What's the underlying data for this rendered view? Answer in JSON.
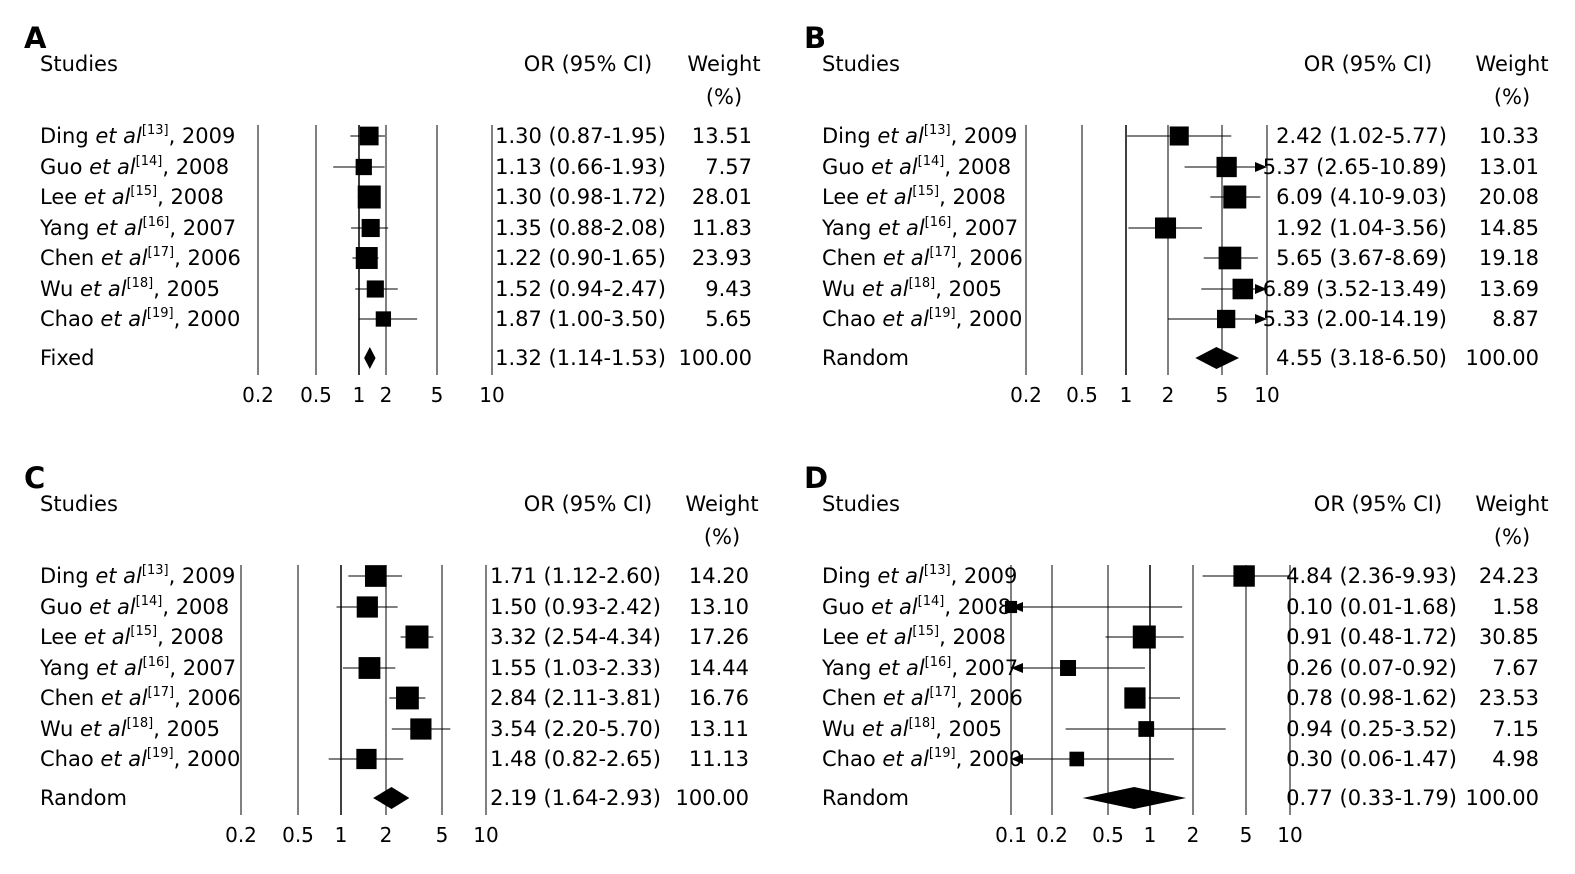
{
  "chart_data": [
    {
      "type": "forest",
      "panel": "A",
      "headers": {
        "studies": "Studies",
        "or": "OR (95% CI)",
        "weight": "Weight",
        "weight_unit": "(%)"
      },
      "scale": "log",
      "xlim": [
        0.2,
        10
      ],
      "ticks": [
        "0.2",
        "0.5",
        "1",
        "2",
        "5",
        "10"
      ],
      "studies": [
        {
          "author": "Ding",
          "ref": "[13]",
          "year": "2009",
          "or": 1.3,
          "lo": 0.87,
          "hi": 1.95,
          "or_text": "1.30 (0.87-1.95)",
          "weight": "13.51"
        },
        {
          "author": "Guo",
          "ref": "[14]",
          "year": "2008",
          "or": 1.13,
          "lo": 0.66,
          "hi": 1.93,
          "or_text": "1.13 (0.66-1.93)",
          "weight": "7.57"
        },
        {
          "author": "Lee",
          "ref": "[15]",
          "year": "2008",
          "or": 1.3,
          "lo": 0.98,
          "hi": 1.72,
          "or_text": "1.30 (0.98-1.72)",
          "weight": "28.01"
        },
        {
          "author": "Yang",
          "ref": "[16]",
          "year": "2007",
          "or": 1.35,
          "lo": 0.88,
          "hi": 2.08,
          "or_text": "1.35 (0.88-2.08)",
          "weight": "11.83"
        },
        {
          "author": "Chen",
          "ref": "[17]",
          "year": "2006",
          "or": 1.22,
          "lo": 0.9,
          "hi": 1.65,
          "or_text": "1.22 (0.90-1.65)",
          "weight": "23.93"
        },
        {
          "author": "Wu",
          "ref": "[18]",
          "year": "2005",
          "or": 1.52,
          "lo": 0.94,
          "hi": 2.47,
          "or_text": "1.52 (0.94-2.47)",
          "weight": "9.43"
        },
        {
          "author": "Chao",
          "ref": "[19]",
          "year": "2000",
          "or": 1.87,
          "lo": 1.0,
          "hi": 3.5,
          "or_text": "1.87 (1.00-3.50)",
          "weight": "5.65"
        }
      ],
      "pooled": {
        "label": "Fixed",
        "or": 1.32,
        "lo": 1.14,
        "hi": 1.53,
        "or_text": "1.32 (1.14-1.53)",
        "weight": "100.00"
      }
    },
    {
      "type": "forest",
      "panel": "B",
      "headers": {
        "studies": "Studies",
        "or": "OR (95% CI)",
        "weight": "Weight",
        "weight_unit": "(%)"
      },
      "scale": "log",
      "xlim": [
        0.2,
        10
      ],
      "ticks": [
        "0.2",
        "0.5",
        "1",
        "2",
        "5",
        "10"
      ],
      "studies": [
        {
          "author": "Ding",
          "ref": "[13]",
          "year": "2009",
          "or": 2.42,
          "lo": 1.02,
          "hi": 5.77,
          "or_text": "2.42 (1.02-5.77)",
          "weight": "10.33"
        },
        {
          "author": "Guo",
          "ref": "[14]",
          "year": "2008",
          "or": 5.37,
          "lo": 2.65,
          "hi": 10.89,
          "or_text": "5.37 (2.65-10.89)",
          "weight": "13.01"
        },
        {
          "author": "Lee",
          "ref": "[15]",
          "year": "2008",
          "or": 6.09,
          "lo": 4.1,
          "hi": 9.03,
          "or_text": "6.09 (4.10-9.03)",
          "weight": "20.08"
        },
        {
          "author": "Yang",
          "ref": "[16]",
          "year": "2007",
          "or": 1.92,
          "lo": 1.04,
          "hi": 3.56,
          "or_text": "1.92 (1.04-3.56)",
          "weight": "14.85"
        },
        {
          "author": "Chen",
          "ref": "[17]",
          "year": "2006",
          "or": 5.65,
          "lo": 3.67,
          "hi": 8.69,
          "or_text": "5.65 (3.67-8.69)",
          "weight": "19.18"
        },
        {
          "author": "Wu",
          "ref": "[18]",
          "year": "2005",
          "or": 6.89,
          "lo": 3.52,
          "hi": 13.49,
          "or_text": "6.89 (3.52-13.49)",
          "weight": "13.69"
        },
        {
          "author": "Chao",
          "ref": "[19]",
          "year": "2000",
          "or": 5.33,
          "lo": 2.0,
          "hi": 14.19,
          "or_text": "5.33 (2.00-14.19)",
          "weight": "8.87"
        }
      ],
      "pooled": {
        "label": "Random",
        "or": 4.55,
        "lo": 3.18,
        "hi": 6.5,
        "or_text": "4.55 (3.18-6.50)",
        "weight": "100.00"
      }
    },
    {
      "type": "forest",
      "panel": "C",
      "headers": {
        "studies": "Studies",
        "or": "OR (95% CI)",
        "weight": "Weight",
        "weight_unit": "(%)"
      },
      "scale": "log",
      "xlim": [
        0.2,
        10
      ],
      "ticks": [
        "0.2",
        "0.5",
        "1",
        "2",
        "5",
        "10"
      ],
      "studies": [
        {
          "author": "Ding",
          "ref": "[13]",
          "year": "2009",
          "or": 1.71,
          "lo": 1.12,
          "hi": 2.6,
          "or_text": "1.71 (1.12-2.60)",
          "weight": "14.20"
        },
        {
          "author": "Guo",
          "ref": "[14]",
          "year": "2008",
          "or": 1.5,
          "lo": 0.93,
          "hi": 2.42,
          "or_text": "1.50 (0.93-2.42)",
          "weight": "13.10"
        },
        {
          "author": "Lee",
          "ref": "[15]",
          "year": "2008",
          "or": 3.32,
          "lo": 2.54,
          "hi": 4.34,
          "or_text": "3.32 (2.54-4.34)",
          "weight": "17.26"
        },
        {
          "author": "Yang",
          "ref": "[16]",
          "year": "2007",
          "or": 1.55,
          "lo": 1.03,
          "hi": 2.33,
          "or_text": "1.55 (1.03-2.33)",
          "weight": "14.44"
        },
        {
          "author": "Chen",
          "ref": "[17]",
          "year": "2006",
          "or": 2.84,
          "lo": 2.11,
          "hi": 3.81,
          "or_text": "2.84 (2.11-3.81)",
          "weight": "16.76"
        },
        {
          "author": "Wu",
          "ref": "[18]",
          "year": "2005",
          "or": 3.54,
          "lo": 2.2,
          "hi": 5.7,
          "or_text": "3.54 (2.20-5.70)",
          "weight": "13.11"
        },
        {
          "author": "Chao",
          "ref": "[19]",
          "year": "2000",
          "or": 1.48,
          "lo": 0.82,
          "hi": 2.65,
          "or_text": "1.48 (0.82-2.65)",
          "weight": "11.13"
        }
      ],
      "pooled": {
        "label": "Random",
        "or": 2.19,
        "lo": 1.64,
        "hi": 2.93,
        "or_text": "2.19 (1.64-2.93)",
        "weight": "100.00"
      }
    },
    {
      "type": "forest",
      "panel": "D",
      "headers": {
        "studies": "Studies",
        "or": "OR (95% CI)",
        "weight": "Weight",
        "weight_unit": "(%)"
      },
      "scale": "log",
      "xlim": [
        0.1,
        10
      ],
      "ticks": [
        "0.1",
        "0.2",
        "0.5",
        "1",
        "2",
        "5",
        "10"
      ],
      "studies": [
        {
          "author": "Ding",
          "ref": "[13]",
          "year": "2009",
          "or": 4.84,
          "lo": 2.36,
          "hi": 9.93,
          "or_text": "4.84 (2.36-9.93)",
          "weight": "24.23"
        },
        {
          "author": "Guo",
          "ref": "[14]",
          "year": "2008",
          "or": 0.1,
          "lo": 0.01,
          "hi": 1.68,
          "or_text": "0.10 (0.01-1.68)",
          "weight": "1.58"
        },
        {
          "author": "Lee",
          "ref": "[15]",
          "year": "2008",
          "or": 0.91,
          "lo": 0.48,
          "hi": 1.72,
          "or_text": "0.91 (0.48-1.72)",
          "weight": "30.85"
        },
        {
          "author": "Yang",
          "ref": "[16]",
          "year": "2007",
          "or": 0.26,
          "lo": 0.07,
          "hi": 0.92,
          "or_text": "0.26 (0.07-0.92)",
          "weight": "7.67"
        },
        {
          "author": "Chen",
          "ref": "[17]",
          "year": "2006",
          "or": 0.78,
          "lo": 0.98,
          "hi": 1.62,
          "or_text": "0.78 (0.98-1.62)",
          "weight": "23.53"
        },
        {
          "author": "Wu",
          "ref": "[18]",
          "year": "2005",
          "or": 0.94,
          "lo": 0.25,
          "hi": 3.52,
          "or_text": "0.94 (0.25-3.52)",
          "weight": "7.15"
        },
        {
          "author": "Chao",
          "ref": "[19]",
          "year": "2000",
          "or": 0.3,
          "lo": 0.06,
          "hi": 1.47,
          "or_text": "0.30 (0.06-1.47)",
          "weight": "4.98"
        }
      ],
      "pooled": {
        "label": "Random",
        "or": 0.77,
        "lo": 0.33,
        "hi": 1.79,
        "or_text": "0.77 (0.33-1.79)",
        "weight": "100.00"
      }
    }
  ],
  "etal_text": "et al",
  "colors": {
    "ink": "#000000",
    "background": "#ffffff"
  }
}
